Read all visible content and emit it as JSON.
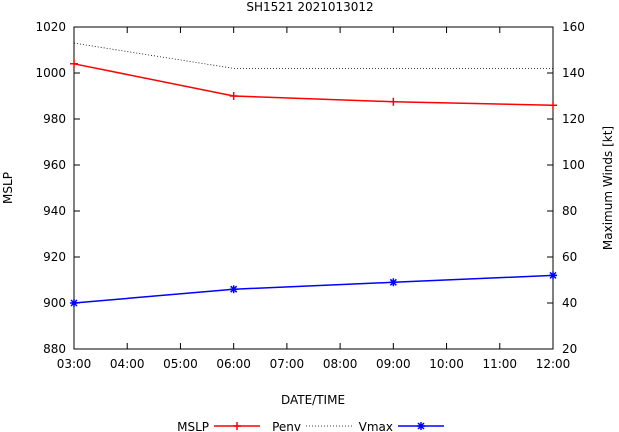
{
  "chart_data": {
    "type": "line",
    "title": "SH1521 2021013012",
    "xlabel": "DATE/TIME",
    "ylabel_left": "MSLP",
    "ylabel_right": "Maximum Winds [kt]",
    "x_hours": [
      3,
      6,
      9,
      12
    ],
    "xlim": [
      3,
      12
    ],
    "x_tick_labels": [
      "03:00",
      "04:00",
      "05:00",
      "06:00",
      "07:00",
      "08:00",
      "09:00",
      "10:00",
      "11:00",
      "12:00"
    ],
    "ylim_left": [
      880,
      1020
    ],
    "y_ticks_left": [
      "880",
      "900",
      "920",
      "940",
      "960",
      "980",
      "1000",
      "1020"
    ],
    "ylim_right": [
      20,
      160
    ],
    "y_ticks_right": [
      "20",
      "40",
      "60",
      "80",
      "100",
      "120",
      "140",
      "160"
    ],
    "series": [
      {
        "name": "MSLP",
        "axis": "left",
        "color": "#ff0000",
        "style": "solid",
        "marker": "plus",
        "values": [
          1004,
          990,
          987.5,
          986
        ]
      },
      {
        "name": "Penv",
        "axis": "left",
        "color": "#000000",
        "style": "dotted",
        "marker": "none",
        "values": [
          1013,
          1002,
          1002,
          1002
        ]
      },
      {
        "name": "Vmax",
        "axis": "right",
        "color": "#0000ff",
        "style": "solid",
        "marker": "star",
        "values": [
          40,
          46,
          49,
          52
        ]
      }
    ],
    "legend": [
      "MSLP",
      "Penv",
      "Vmax"
    ],
    "legend_position": "bottom-center",
    "grid": false
  }
}
